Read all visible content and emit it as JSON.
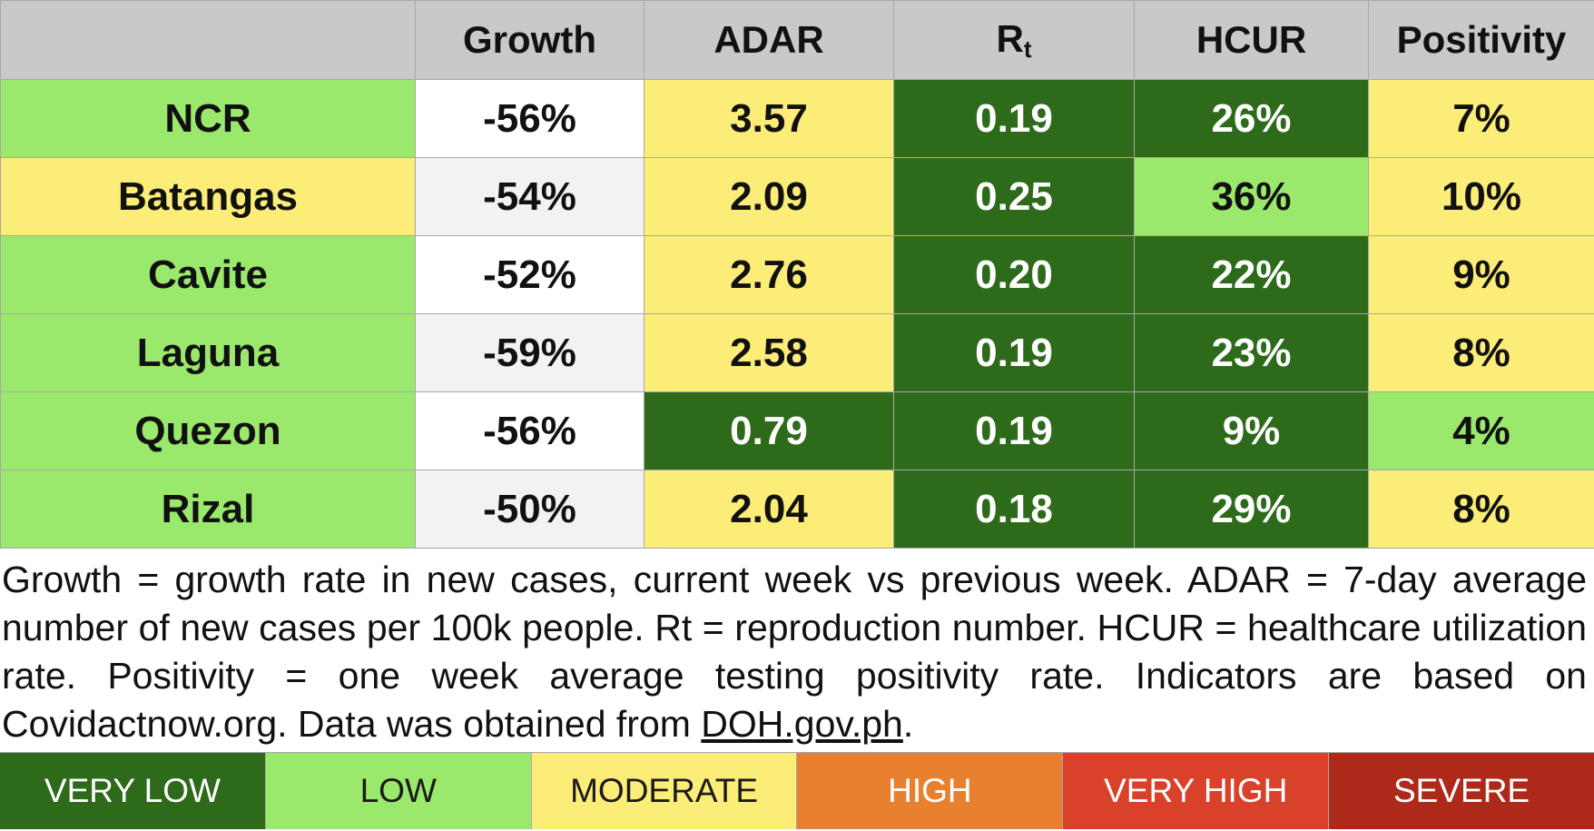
{
  "colors": {
    "very_low": "#2d6b1b",
    "low": "#9ae96c",
    "moderate": "#fcec78",
    "high": "#e8812f",
    "very_high": "#d9412a",
    "severe": "#ad2a1b",
    "neutral_white": "#ffffff",
    "neutral_light": "#f2f2f2",
    "header_bg": "#c9c9c9"
  },
  "table": {
    "headers": {
      "province": "",
      "growth": "Growth",
      "adar": "ADAR",
      "rt_base": "R",
      "rt_sub": "t",
      "hcur": "HCUR",
      "positivity": "Positivity"
    },
    "rows": [
      {
        "province": {
          "text": "NCR",
          "level": "low"
        },
        "growth": {
          "text": "-56%",
          "level": "neutral_white"
        },
        "adar": {
          "text": "3.57",
          "level": "moderate"
        },
        "rt": {
          "text": "0.19",
          "level": "very_low"
        },
        "hcur": {
          "text": "26%",
          "level": "very_low"
        },
        "positivity": {
          "text": "7%",
          "level": "moderate"
        }
      },
      {
        "province": {
          "text": "Batangas",
          "level": "moderate"
        },
        "growth": {
          "text": "-54%",
          "level": "neutral_light"
        },
        "adar": {
          "text": "2.09",
          "level": "moderate"
        },
        "rt": {
          "text": "0.25",
          "level": "very_low"
        },
        "hcur": {
          "text": "36%",
          "level": "low"
        },
        "positivity": {
          "text": "10%",
          "level": "moderate"
        }
      },
      {
        "province": {
          "text": "Cavite",
          "level": "low"
        },
        "growth": {
          "text": "-52%",
          "level": "neutral_white"
        },
        "adar": {
          "text": "2.76",
          "level": "moderate"
        },
        "rt": {
          "text": "0.20",
          "level": "very_low"
        },
        "hcur": {
          "text": "22%",
          "level": "very_low"
        },
        "positivity": {
          "text": "9%",
          "level": "moderate"
        }
      },
      {
        "province": {
          "text": "Laguna",
          "level": "low"
        },
        "growth": {
          "text": "-59%",
          "level": "neutral_light"
        },
        "adar": {
          "text": "2.58",
          "level": "moderate"
        },
        "rt": {
          "text": "0.19",
          "level": "very_low"
        },
        "hcur": {
          "text": "23%",
          "level": "very_low"
        },
        "positivity": {
          "text": "8%",
          "level": "moderate"
        }
      },
      {
        "province": {
          "text": "Quezon",
          "level": "low"
        },
        "growth": {
          "text": "-56%",
          "level": "neutral_white"
        },
        "adar": {
          "text": "0.79",
          "level": "very_low"
        },
        "rt": {
          "text": "0.19",
          "level": "very_low"
        },
        "hcur": {
          "text": "9%",
          "level": "very_low"
        },
        "positivity": {
          "text": "4%",
          "level": "low"
        }
      },
      {
        "province": {
          "text": "Rizal",
          "level": "low"
        },
        "growth": {
          "text": "-50%",
          "level": "neutral_light"
        },
        "adar": {
          "text": "2.04",
          "level": "moderate"
        },
        "rt": {
          "text": "0.18",
          "level": "very_low"
        },
        "hcur": {
          "text": "29%",
          "level": "very_low"
        },
        "positivity": {
          "text": "8%",
          "level": "moderate"
        }
      }
    ]
  },
  "footnote": {
    "text": "Growth = growth rate in new cases, current week vs previous week. ADAR = 7-day average number of new cases per 100k people. Rt = reproduction number. HCUR = healthcare utilization rate. Positivity = one week average testing positivity rate. Indicators are based on Covidactnow.org. Data was obtained from ",
    "source_link": "DOH.gov.ph",
    "end": "."
  },
  "legend": [
    {
      "label": "VERY LOW",
      "level": "very_low",
      "text_color": "#ffffff"
    },
    {
      "label": "LOW",
      "level": "low",
      "text_color": "#1a1a1a"
    },
    {
      "label": "MODERATE",
      "level": "moderate",
      "text_color": "#1a1a1a"
    },
    {
      "label": "HIGH",
      "level": "high",
      "text_color": "#ffffff"
    },
    {
      "label": "VERY HIGH",
      "level": "very_high",
      "text_color": "#ffffff"
    },
    {
      "label": "SEVERE",
      "level": "severe",
      "text_color": "#ffffff"
    }
  ]
}
